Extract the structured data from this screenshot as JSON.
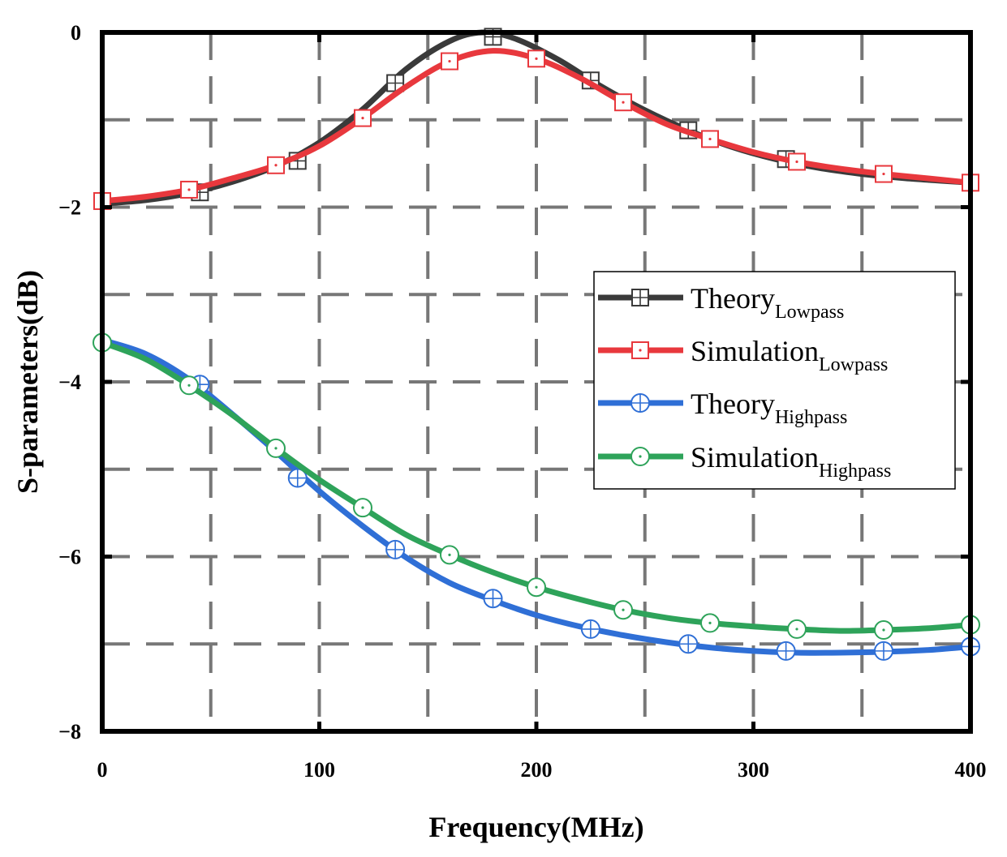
{
  "chart_data": {
    "type": "line",
    "title": "",
    "xlabel": "Frequency(MHz)",
    "ylabel": "S-parameters(dB)",
    "xlim": [
      0,
      400
    ],
    "ylim": [
      -8,
      0
    ],
    "x_ticks": [
      0,
      100,
      200,
      300,
      400
    ],
    "x_tick_labels": [
      "0",
      "100",
      "200",
      "300",
      "400"
    ],
    "y_ticks": [
      0,
      -2,
      -4,
      -6,
      -8
    ],
    "y_tick_labels": [
      "0",
      "−2",
      "−4",
      "−6",
      "−8"
    ],
    "grid": true,
    "legend_position": "center-right",
    "series": [
      {
        "name": "Theory",
        "subscript": "Lowpass",
        "color": "#3a3a3a",
        "marker": "square-cross",
        "curve_x": [
          0,
          20,
          40,
          60,
          80,
          100,
          120,
          140,
          160,
          175,
          190,
          210,
          230,
          250,
          270,
          290,
          310,
          330,
          350,
          370,
          400
        ],
        "curve_y": [
          -1.96,
          -1.92,
          -1.84,
          -1.71,
          -1.53,
          -1.26,
          -0.88,
          -0.42,
          -0.1,
          0.0,
          -0.07,
          -0.31,
          -0.62,
          -0.89,
          -1.12,
          -1.31,
          -1.45,
          -1.55,
          -1.62,
          -1.67,
          -1.72
        ],
        "marker_x": [
          45,
          90,
          135,
          180,
          225,
          270,
          315
        ],
        "marker_y": [
          -1.83,
          -1.47,
          -0.58,
          -0.05,
          -0.55,
          -1.12,
          -1.45
        ]
      },
      {
        "name": "Simulation",
        "subscript": "Lowpass",
        "color": "#e8383d",
        "marker": "square-dot",
        "curve_x": [
          0,
          20,
          40,
          60,
          80,
          100,
          120,
          140,
          160,
          180,
          200,
          220,
          240,
          260,
          280,
          300,
          320,
          340,
          360,
          380,
          400
        ],
        "curve_y": [
          -1.93,
          -1.88,
          -1.8,
          -1.67,
          -1.52,
          -1.3,
          -0.98,
          -0.62,
          -0.33,
          -0.21,
          -0.3,
          -0.52,
          -0.8,
          -1.05,
          -1.22,
          -1.37,
          -1.48,
          -1.56,
          -1.62,
          -1.67,
          -1.72
        ],
        "marker_x": [
          0,
          40,
          80,
          120,
          160,
          200,
          240,
          280,
          320,
          360,
          400
        ],
        "marker_y": [
          -1.93,
          -1.8,
          -1.52,
          -0.98,
          -0.33,
          -0.3,
          -0.8,
          -1.22,
          -1.48,
          -1.62,
          -1.72
        ]
      },
      {
        "name": "Theory",
        "subscript": "Highpass",
        "color": "#2f6fd6",
        "marker": "circle-cross",
        "curve_x": [
          0,
          20,
          40,
          60,
          80,
          100,
          120,
          140,
          160,
          180,
          200,
          220,
          240,
          260,
          280,
          300,
          320,
          340,
          360,
          380,
          400
        ],
        "curve_y": [
          -3.52,
          -3.68,
          -3.97,
          -4.37,
          -4.8,
          -5.25,
          -5.65,
          -6.01,
          -6.3,
          -6.5,
          -6.67,
          -6.8,
          -6.9,
          -6.98,
          -7.04,
          -7.08,
          -7.1,
          -7.1,
          -7.09,
          -7.07,
          -7.03
        ],
        "marker_x": [
          45,
          90,
          135,
          180,
          225,
          270,
          315,
          360,
          400
        ],
        "marker_y": [
          -4.03,
          -5.1,
          -5.92,
          -6.48,
          -6.83,
          -7.0,
          -7.08,
          -7.08,
          -7.03
        ]
      },
      {
        "name": "Simulation",
        "subscript": "Highpass",
        "color": "#2ea35a",
        "marker": "circle-dot",
        "curve_x": [
          0,
          20,
          40,
          60,
          80,
          100,
          120,
          140,
          160,
          180,
          200,
          220,
          240,
          260,
          280,
          300,
          320,
          340,
          360,
          380,
          400
        ],
        "curve_y": [
          -3.55,
          -3.74,
          -4.04,
          -4.38,
          -4.76,
          -5.12,
          -5.44,
          -5.75,
          -5.98,
          -6.18,
          -6.35,
          -6.49,
          -6.61,
          -6.7,
          -6.76,
          -6.8,
          -6.83,
          -6.85,
          -6.84,
          -6.82,
          -6.78
        ],
        "marker_x": [
          0,
          40,
          80,
          120,
          160,
          200,
          240,
          280,
          320,
          360,
          400
        ],
        "marker_y": [
          -3.55,
          -4.04,
          -4.76,
          -5.44,
          -5.98,
          -6.35,
          -6.61,
          -6.76,
          -6.83,
          -6.84,
          -6.78
        ]
      }
    ]
  }
}
